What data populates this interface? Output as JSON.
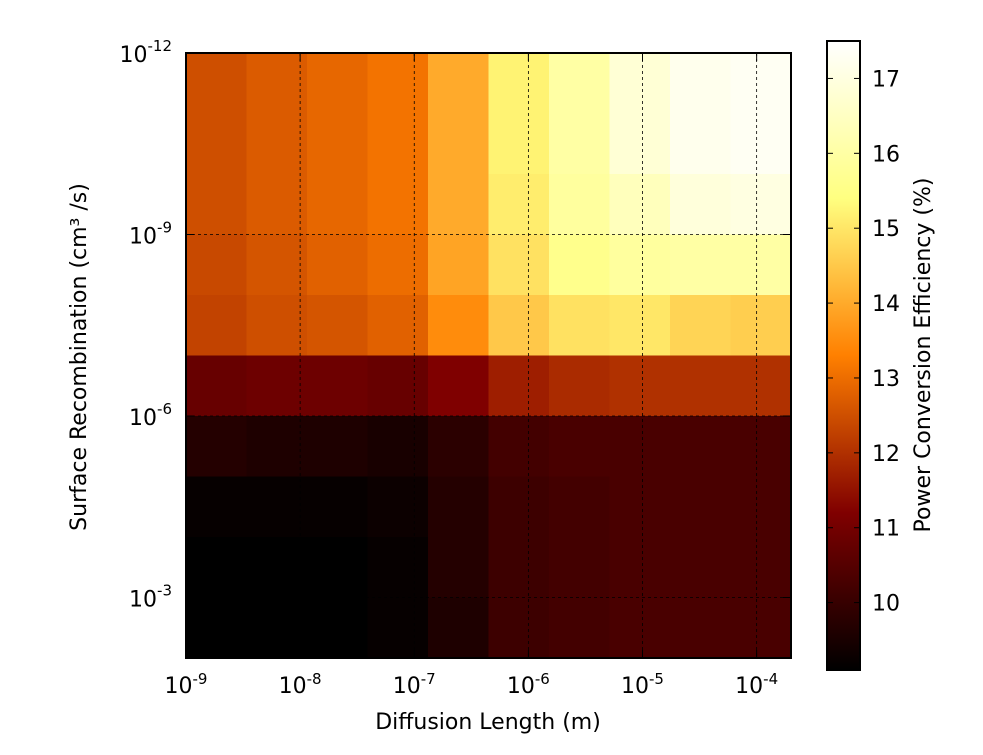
{
  "chart_data": {
    "type": "heatmap",
    "xlabel": "Diffusion Length (m)",
    "ylabel": "Surface Recombination (cm³ /s)",
    "colorbar_label": "Power Conversion Efficiency (%)",
    "colormap": "afmhot",
    "color_range": [
      9.1,
      17.5
    ],
    "x_scale": "log",
    "y_scale": "log",
    "x_range": [
      1e-09,
      0.0002
    ],
    "y_range": [
      1e-12,
      0.01
    ],
    "y_direction": "decreasing-downward",
    "x_tick_labels": [
      {
        "base": "10",
        "exp": "-9"
      },
      {
        "base": "10",
        "exp": "-8"
      },
      {
        "base": "10",
        "exp": "-7"
      },
      {
        "base": "10",
        "exp": "-6"
      },
      {
        "base": "10",
        "exp": "-5"
      },
      {
        "base": "10",
        "exp": "-4"
      }
    ],
    "y_tick_labels": [
      {
        "base": "10",
        "exp": "-12"
      },
      {
        "base": "10",
        "exp": "-9"
      },
      {
        "base": "10",
        "exp": "-6"
      },
      {
        "base": "10",
        "exp": "-3"
      }
    ],
    "colorbar_ticks": [
      "10",
      "11",
      "12",
      "13",
      "14",
      "15",
      "16",
      "17"
    ],
    "grid": true,
    "columns": [
      "1e-9",
      "3e-9",
      "1e-8",
      "3e-8",
      "1e-7",
      "3e-7",
      "1e-6",
      "3e-6",
      "1e-5",
      "3e-5"
    ],
    "rows": [
      "1e-12",
      "1e-11",
      "1e-10",
      "1e-9",
      "1e-8",
      "1e-7",
      "1e-6",
      "1e-5",
      "1e-4",
      "1e-3"
    ],
    "values": [
      [
        12.5,
        12.7,
        12.9,
        13.1,
        14.0,
        15.2,
        16.0,
        16.8,
        17.2,
        17.3
      ],
      [
        12.5,
        12.7,
        12.9,
        13.1,
        14.0,
        15.2,
        16.0,
        16.8,
        17.2,
        17.3
      ],
      [
        12.5,
        12.7,
        12.9,
        13.1,
        14.0,
        15.1,
        15.9,
        16.4,
        16.9,
        17.0
      ],
      [
        12.4,
        12.6,
        12.8,
        13.0,
        13.9,
        14.9,
        15.6,
        15.9,
        16.0,
        16.0
      ],
      [
        12.3,
        12.5,
        12.6,
        12.8,
        13.5,
        14.5,
        14.9,
        15.0,
        14.7,
        14.6
      ],
      [
        10.8,
        10.9,
        10.9,
        10.8,
        11.2,
        11.7,
        11.9,
        12.0,
        12.0,
        12.0
      ],
      [
        9.7,
        9.6,
        9.6,
        9.5,
        9.8,
        10.2,
        10.3,
        10.3,
        10.3,
        10.3
      ],
      [
        9.2,
        9.2,
        9.2,
        9.3,
        9.7,
        10.1,
        10.2,
        10.3,
        10.3,
        10.3
      ],
      [
        9.1,
        9.1,
        9.1,
        9.2,
        9.7,
        10.1,
        10.2,
        10.3,
        10.3,
        10.3
      ],
      [
        9.1,
        9.1,
        9.1,
        9.2,
        9.6,
        10.1,
        10.2,
        10.3,
        10.3,
        10.3
      ]
    ]
  }
}
